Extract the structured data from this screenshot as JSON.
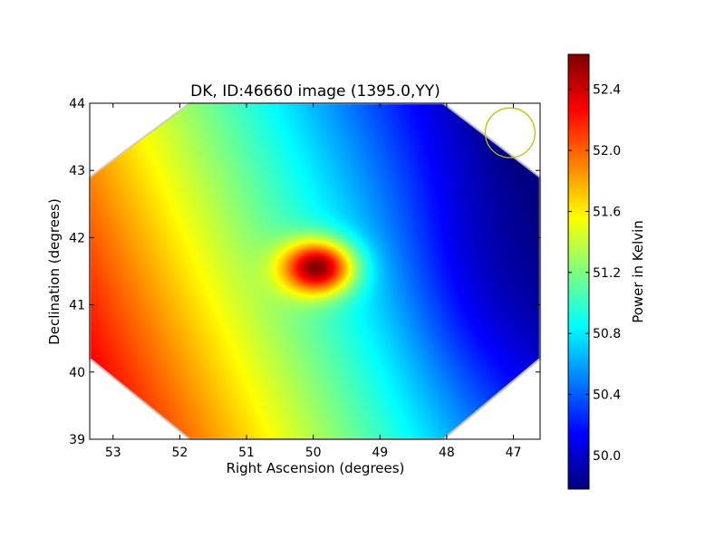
{
  "chart_data": {
    "type": "heatmap",
    "title": "DK, ID:46660 image (1395.0,YY)",
    "xlabel": "Right Ascension (degrees)",
    "ylabel": "Declination (degrees)",
    "xlim": [
      53.35,
      46.6
    ],
    "ylim": [
      39,
      44
    ],
    "x_ticks": [
      53,
      52,
      51,
      50,
      49,
      48,
      47
    ],
    "y_ticks": [
      39,
      40,
      41,
      42,
      43,
      44
    ],
    "colorbar": {
      "label": "Power in Kelvin",
      "range": [
        49.78,
        52.63
      ],
      "ticks": [
        50.0,
        50.4,
        50.8,
        51.2,
        51.6,
        52.0,
        52.4
      ],
      "tick_labels": [
        "50.0",
        "50.4",
        "50.8",
        "51.2",
        "51.6",
        "52.0",
        "52.4"
      ],
      "colormap": "jet"
    },
    "field_model": {
      "gradient": {
        "ra_center": 50,
        "dec_center": 41.5,
        "base": 51.0,
        "per_degree_ra": 0.33,
        "per_degree_dec": -0.14
      },
      "hotspot": {
        "ra": 49.95,
        "dec": 41.55,
        "peak": 52.63,
        "sigma_ra": 0.38,
        "sigma_dec": 0.28
      },
      "cold_region": {
        "ra": 47.0,
        "dec": 41.7,
        "value": 49.78
      }
    },
    "valid_region": {
      "shape": "octagon",
      "vertices_radec": [
        [
          51.85,
          44.0
        ],
        [
          48.05,
          44.0
        ],
        [
          46.6,
          42.9
        ],
        [
          46.6,
          40.2
        ],
        [
          48.05,
          39.0
        ],
        [
          51.85,
          39.0
        ],
        [
          53.35,
          40.2
        ],
        [
          53.35,
          42.9
        ]
      ]
    },
    "beam_marker": {
      "ra": 47.05,
      "dec": 43.56,
      "radius_deg": 0.37,
      "color": "#bfbf00"
    },
    "grid": false,
    "legend": "none"
  }
}
